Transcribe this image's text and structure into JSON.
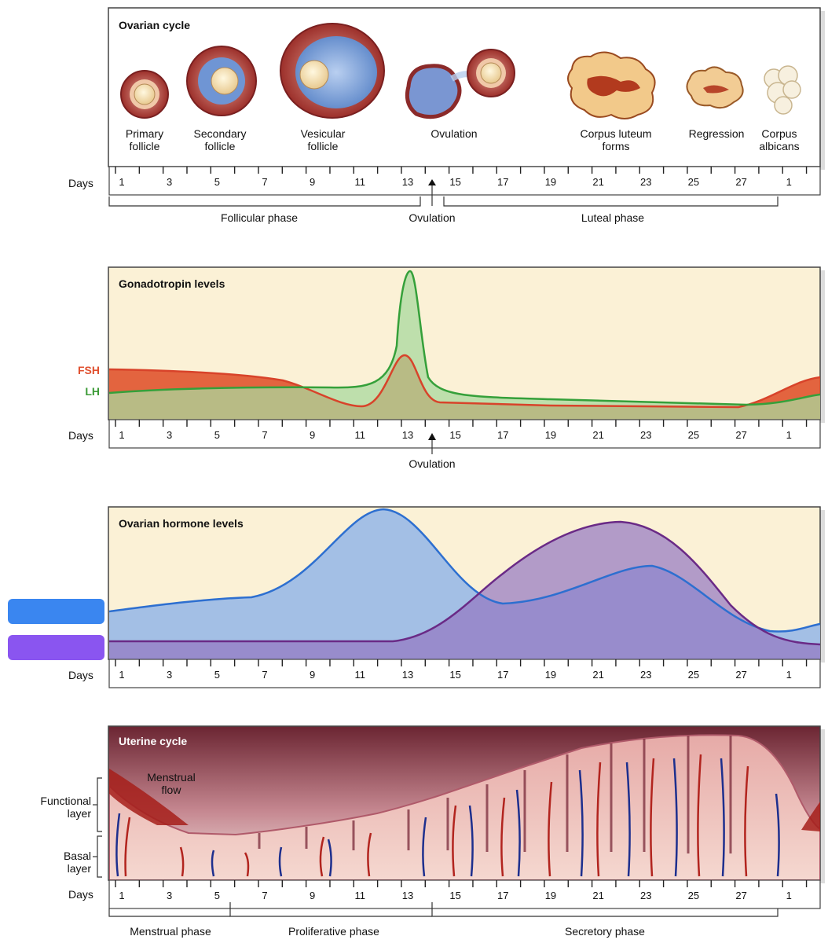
{
  "colors": {
    "panel_bg": "#fbf1d6",
    "panel_border": "#444444",
    "fsh": "#e0502f",
    "lh": "#3c9b37",
    "estrogen": "#2d6fd0",
    "progesterone": "#6a2a86",
    "legend_blue": "#3a86f0",
    "legend_purple": "#8a55f0"
  },
  "days_label": "Days",
  "day_ticks": [
    "1",
    "3",
    "5",
    "7",
    "9",
    "11",
    "13",
    "15",
    "17",
    "19",
    "21",
    "23",
    "25",
    "27",
    "1"
  ],
  "ovarian_cycle": {
    "title": "Ovarian cycle",
    "stages": [
      {
        "line1": "Primary",
        "line2": "follicle"
      },
      {
        "line1": "Secondary",
        "line2": "follicle"
      },
      {
        "line1": "Vesicular",
        "line2": "follicle"
      },
      {
        "line1": "Ovulation",
        "line2": ""
      },
      {
        "line1": "Corpus luteum",
        "line2": "forms"
      },
      {
        "line1": "Regression",
        "line2": ""
      },
      {
        "line1": "Corpus",
        "line2": "albicans"
      }
    ],
    "phases": {
      "follicular": "Follicular phase",
      "ovulation": "Ovulation",
      "luteal": "Luteal phase"
    }
  },
  "gonadotropin": {
    "title": "Gonadotropin levels",
    "fsh_label": "FSH",
    "lh_label": "LH",
    "ovulation_label": "Ovulation"
  },
  "ovarian_hormones": {
    "title": "Ovarian hormone levels"
  },
  "uterine_cycle": {
    "title": "Uterine cycle",
    "flow_line1": "Menstrual",
    "flow_line2": "flow",
    "functional_line1": "Functional",
    "functional_line2": "layer",
    "basal_line1": "Basal",
    "basal_line2": "layer",
    "phases": {
      "menstrual": "Menstrual phase",
      "proliferative": "Proliferative phase",
      "secretory": "Secretory phase"
    }
  }
}
